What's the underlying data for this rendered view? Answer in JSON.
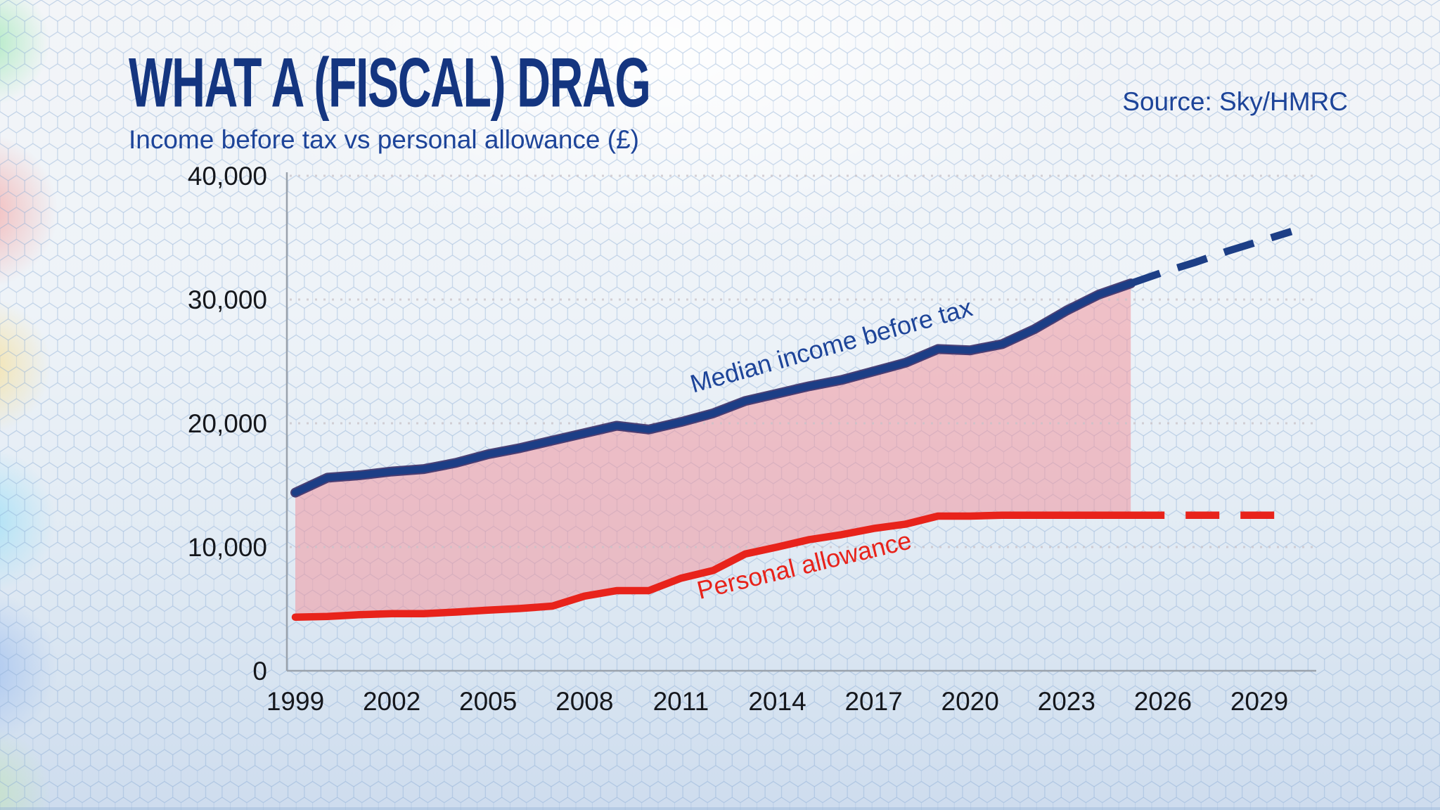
{
  "header": {
    "title": "WHAT A (FISCAL) DRAG",
    "subtitle": "Income before tax vs personal allowance (£)",
    "source": "Source: Sky/HMRC"
  },
  "colors": {
    "navy_line": "#1c3e86",
    "navy_line_shadow": "#3a2f68",
    "red_line": "#e8231b",
    "shade_pink": "rgba(240,150,158,0.55)",
    "grid": "#c9c3c9",
    "axis": "#9aa2ac",
    "tick_text": "#15171c",
    "title_navy": "#143580",
    "subtitle_navy": "#1d4499"
  },
  "chart_data": {
    "type": "area",
    "title": "WHAT A (FISCAL) DRAG",
    "subtitle": "Income before tax vs personal allowance (£)",
    "xlabel": "",
    "ylabel": "",
    "grid": "dotted horizontal",
    "legend_position": "inline labels on lines",
    "years": [
      1999,
      2000,
      2001,
      2002,
      2003,
      2004,
      2005,
      2006,
      2007,
      2008,
      2009,
      2010,
      2011,
      2012,
      2013,
      2014,
      2015,
      2016,
      2017,
      2018,
      2019,
      2020,
      2021,
      2022,
      2023,
      2024,
      2025,
      2026,
      2027,
      2028,
      2029,
      2030
    ],
    "solid_until_year": 2025,
    "projection_end_year": 2030,
    "shaded_between_series_until": 2025,
    "series": [
      {
        "name": "Median income before tax",
        "values": [
          14400,
          15600,
          15800,
          16100,
          16300,
          16800,
          17500,
          18000,
          18600,
          19200,
          19800,
          19500,
          20100,
          20800,
          21800,
          22400,
          23000,
          23500,
          24200,
          24900,
          26000,
          25900,
          26400,
          27600,
          29100,
          30400,
          31300,
          32200,
          33000,
          33900,
          34700,
          35500
        ],
        "label_anchor": {
          "year": 2015.75,
          "value": 25600
        },
        "label_angle_deg": -15.5
      },
      {
        "name": "Personal allowance",
        "values": [
          4335,
          4385,
          4535,
          4615,
          4615,
          4745,
          4895,
          5035,
          5225,
          6035,
          6475,
          6475,
          7475,
          8105,
          9440,
          10000,
          10600,
          11000,
          11500,
          11850,
          12500,
          12500,
          12570,
          12570,
          12570,
          12570,
          12570,
          12570,
          12570,
          12570,
          12570,
          12570
        ],
        "label_anchor": {
          "year": 2014.9,
          "value": 7850
        },
        "label_angle_deg": -13.5
      }
    ],
    "y_axis": {
      "range": [
        0,
        40000
      ],
      "ticks": [
        0,
        10000,
        20000,
        30000,
        40000
      ],
      "tick_labels": [
        "0",
        "10,000",
        "20,000",
        "30,000",
        "40,000"
      ]
    },
    "x_axis": {
      "range": [
        1999,
        2030
      ],
      "ticks": [
        1999,
        2002,
        2005,
        2008,
        2011,
        2014,
        2017,
        2020,
        2023,
        2026,
        2029
      ],
      "tick_labels": [
        "1999",
        "2002",
        "2005",
        "2008",
        "2011",
        "2014",
        "2017",
        "2020",
        "2023",
        "2026",
        "2029"
      ]
    }
  }
}
